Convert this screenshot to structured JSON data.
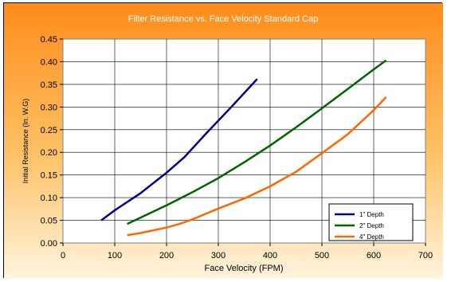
{
  "chart_data": {
    "type": "line",
    "title": "Filter Resistance vs. Face Velocity Standard Cap",
    "xlabel": "Face Velocity (FPM)",
    "ylabel": "Initial Resistance (In. W.G)",
    "xlim": [
      0,
      700
    ],
    "ylim": [
      0,
      0.45
    ],
    "xticks": [
      0,
      100,
      200,
      300,
      400,
      500,
      600,
      700
    ],
    "yticks": [
      0.0,
      0.05,
      0.1,
      0.15,
      0.2,
      0.25,
      0.3,
      0.35,
      0.4,
      0.45
    ],
    "grid": true,
    "legend_position": "bottom-right",
    "series": [
      {
        "name": "1\" Depth",
        "color": "#00008B",
        "points": [
          [
            74,
            0.05
          ],
          [
            100,
            0.072
          ],
          [
            150,
            0.11
          ],
          [
            200,
            0.155
          ],
          [
            235,
            0.19
          ],
          [
            275,
            0.24
          ],
          [
            325,
            0.3
          ],
          [
            375,
            0.362
          ]
        ]
      },
      {
        "name": "2\" Depth",
        "color": "#006400",
        "points": [
          [
            124,
            0.042
          ],
          [
            150,
            0.056
          ],
          [
            200,
            0.083
          ],
          [
            250,
            0.112
          ],
          [
            300,
            0.143
          ],
          [
            350,
            0.178
          ],
          [
            400,
            0.215
          ],
          [
            450,
            0.255
          ],
          [
            500,
            0.297
          ],
          [
            550,
            0.34
          ],
          [
            600,
            0.383
          ],
          [
            624,
            0.403
          ]
        ]
      },
      {
        "name": "4\" Depth",
        "color": "#FF6600",
        "points": [
          [
            124,
            0.017
          ],
          [
            150,
            0.022
          ],
          [
            200,
            0.034
          ],
          [
            225,
            0.042
          ],
          [
            250,
            0.052
          ],
          [
            300,
            0.076
          ],
          [
            350,
            0.098
          ],
          [
            400,
            0.125
          ],
          [
            450,
            0.157
          ],
          [
            500,
            0.198
          ],
          [
            550,
            0.24
          ],
          [
            600,
            0.293
          ],
          [
            624,
            0.322
          ]
        ]
      }
    ]
  }
}
